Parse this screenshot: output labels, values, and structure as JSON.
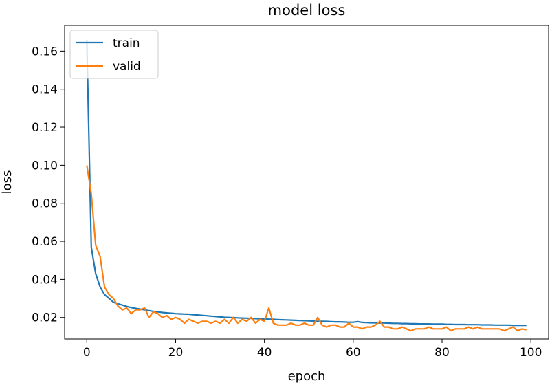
{
  "chart_data": {
    "type": "line",
    "title": "model loss",
    "xlabel": "epoch",
    "ylabel": "loss",
    "xlim": [
      -5,
      104
    ],
    "ylim": [
      0.0087,
      0.1735
    ],
    "x_ticks": [
      0,
      20,
      40,
      60,
      80,
      100
    ],
    "y_ticks": [
      0.02,
      0.04,
      0.06,
      0.08,
      0.1,
      0.12,
      0.14,
      0.16
    ],
    "x_tick_labels": [
      "0",
      "20",
      "40",
      "60",
      "80",
      "100"
    ],
    "y_tick_labels": [
      "0.02",
      "0.04",
      "0.06",
      "0.08",
      "0.10",
      "0.12",
      "0.14",
      "0.16"
    ],
    "grid": false,
    "legend_position": "upper-left",
    "series": [
      {
        "name": "train",
        "color": "#1f77b4",
        "x": [
          0,
          1,
          2,
          3,
          4,
          5,
          6,
          7,
          8,
          9,
          10,
          11,
          12,
          13,
          14,
          15,
          16,
          17,
          18,
          19,
          20,
          21,
          22,
          23,
          24,
          25,
          26,
          27,
          28,
          29,
          30,
          31,
          32,
          33,
          34,
          35,
          36,
          37,
          38,
          39,
          40,
          41,
          42,
          43,
          44,
          45,
          46,
          47,
          48,
          49,
          50,
          51,
          52,
          53,
          54,
          55,
          56,
          57,
          58,
          59,
          60,
          61,
          62,
          63,
          64,
          65,
          66,
          67,
          68,
          69,
          70,
          71,
          72,
          73,
          74,
          75,
          76,
          77,
          78,
          79,
          80,
          81,
          82,
          83,
          84,
          85,
          86,
          87,
          88,
          89,
          90,
          91,
          92,
          93,
          94,
          95,
          96,
          97,
          98,
          99
        ],
        "y": [
          0.166,
          0.057,
          0.043,
          0.036,
          0.032,
          0.03,
          0.028,
          0.0272,
          0.0265,
          0.0258,
          0.0252,
          0.0248,
          0.0244,
          0.024,
          0.0236,
          0.0232,
          0.0229,
          0.0226,
          0.0224,
          0.0222,
          0.022,
          0.0219,
          0.0218,
          0.0217,
          0.0215,
          0.0213,
          0.0211,
          0.0209,
          0.0207,
          0.0205,
          0.0203,
          0.0201,
          0.02,
          0.0199,
          0.0198,
          0.0197,
          0.0196,
          0.0195,
          0.0194,
          0.0193,
          0.0192,
          0.0191,
          0.019,
          0.0189,
          0.0188,
          0.0187,
          0.0186,
          0.0185,
          0.0184,
          0.0183,
          0.0182,
          0.0181,
          0.018,
          0.018,
          0.0179,
          0.0178,
          0.0177,
          0.0177,
          0.0176,
          0.0175,
          0.0175,
          0.0178,
          0.0174,
          0.0173,
          0.0172,
          0.0172,
          0.0171,
          0.0171,
          0.017,
          0.0169,
          0.0169,
          0.0168,
          0.0168,
          0.0167,
          0.0167,
          0.0166,
          0.0166,
          0.0166,
          0.0165,
          0.0165,
          0.0165,
          0.0164,
          0.0164,
          0.0163,
          0.0163,
          0.0163,
          0.0162,
          0.0162,
          0.0162,
          0.0161,
          0.0161,
          0.0161,
          0.016,
          0.016,
          0.016,
          0.016,
          0.0159,
          0.0159,
          0.0159,
          0.0159
        ]
      },
      {
        "name": "valid",
        "color": "#ff7f0e",
        "x": [
          0,
          1,
          2,
          3,
          4,
          5,
          6,
          7,
          8,
          9,
          10,
          11,
          12,
          13,
          14,
          15,
          16,
          17,
          18,
          19,
          20,
          21,
          22,
          23,
          24,
          25,
          26,
          27,
          28,
          29,
          30,
          31,
          32,
          33,
          34,
          35,
          36,
          37,
          38,
          39,
          40,
          41,
          42,
          43,
          44,
          45,
          46,
          47,
          48,
          49,
          50,
          51,
          52,
          53,
          54,
          55,
          56,
          57,
          58,
          59,
          60,
          61,
          62,
          63,
          64,
          65,
          66,
          67,
          68,
          69,
          70,
          71,
          72,
          73,
          74,
          75,
          76,
          77,
          78,
          79,
          80,
          81,
          82,
          83,
          84,
          85,
          86,
          87,
          88,
          89,
          90,
          91,
          92,
          93,
          94,
          95,
          96,
          97,
          98,
          99
        ],
        "y": [
          0.1,
          0.085,
          0.058,
          0.052,
          0.036,
          0.032,
          0.03,
          0.026,
          0.024,
          0.025,
          0.022,
          0.024,
          0.024,
          0.025,
          0.02,
          0.023,
          0.022,
          0.02,
          0.021,
          0.019,
          0.02,
          0.019,
          0.017,
          0.019,
          0.018,
          0.017,
          0.018,
          0.018,
          0.017,
          0.018,
          0.017,
          0.019,
          0.017,
          0.02,
          0.017,
          0.019,
          0.018,
          0.02,
          0.017,
          0.019,
          0.018,
          0.025,
          0.017,
          0.016,
          0.016,
          0.016,
          0.017,
          0.016,
          0.016,
          0.017,
          0.016,
          0.016,
          0.02,
          0.016,
          0.015,
          0.016,
          0.016,
          0.015,
          0.015,
          0.017,
          0.015,
          0.015,
          0.014,
          0.015,
          0.015,
          0.016,
          0.018,
          0.015,
          0.015,
          0.014,
          0.014,
          0.015,
          0.014,
          0.013,
          0.014,
          0.014,
          0.014,
          0.015,
          0.014,
          0.014,
          0.014,
          0.015,
          0.013,
          0.014,
          0.014,
          0.014,
          0.015,
          0.014,
          0.015,
          0.014,
          0.014,
          0.014,
          0.014,
          0.014,
          0.013,
          0.014,
          0.015,
          0.013,
          0.014,
          0.0135
        ]
      }
    ]
  }
}
